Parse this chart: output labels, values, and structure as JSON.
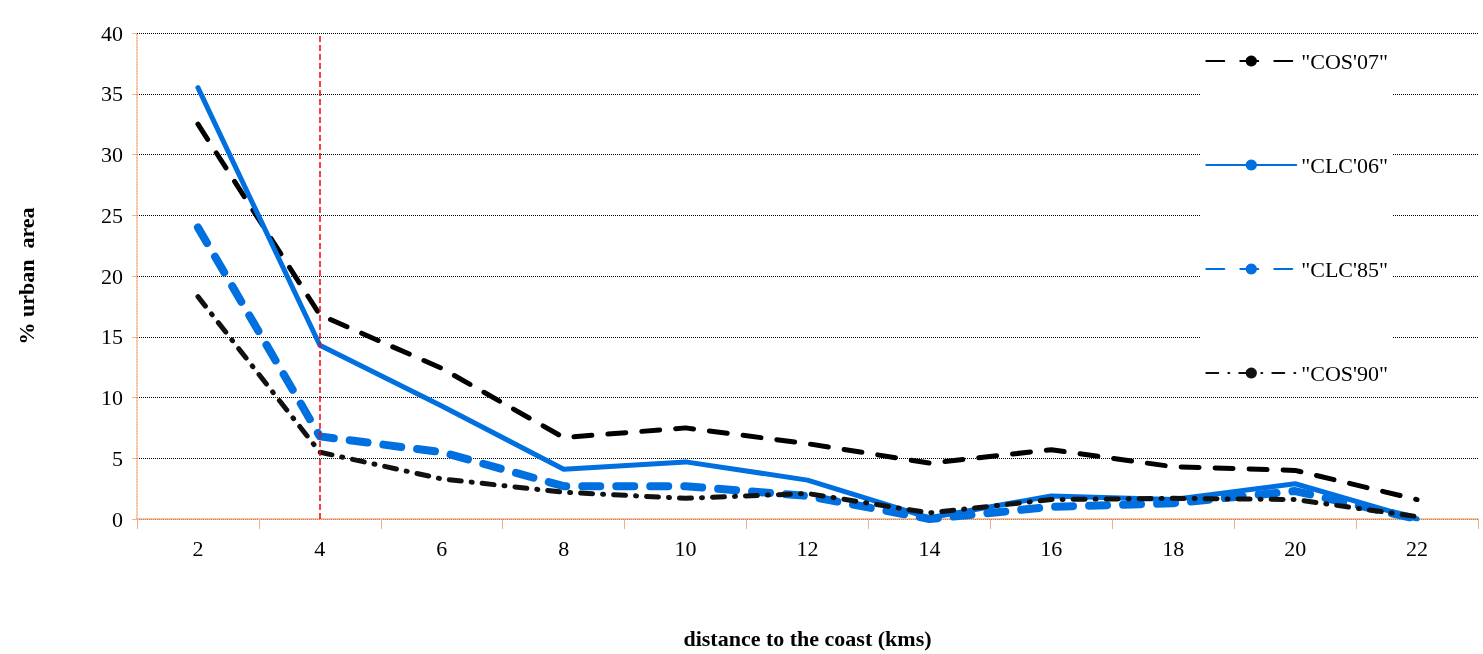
{
  "chart_data": {
    "type": "line",
    "xlabel": "distance to the coast (kms)",
    "ylabel": "% urban  area",
    "categories": [
      "2",
      "4",
      "6",
      "8",
      "10",
      "12",
      "14",
      "16",
      "18",
      "20",
      "22"
    ],
    "series": [
      {
        "name": "\"COS'07\"",
        "color": "#000000",
        "line_style": "dashed",
        "values": [
          32.5,
          16.8,
          12.4,
          6.7,
          7.5,
          6.2,
          4.6,
          5.7,
          4.3,
          4.0,
          1.6
        ]
      },
      {
        "name": "\"CLC'06\"",
        "color": "#0070e0",
        "line_style": "solid",
        "values": [
          35.5,
          14.3,
          9.3,
          4.1,
          4.7,
          3.2,
          0.1,
          1.9,
          1.6,
          2.9,
          0
        ]
      },
      {
        "name": "\"CLC'85\"",
        "color": "#0070e0",
        "line_style": "dashed",
        "values": [
          24,
          6.8,
          5.5,
          2.7,
          2.7,
          1.9,
          0,
          1.0,
          1.3,
          2.3,
          0
        ]
      },
      {
        "name": "\"COS'90\"",
        "color": "#111111",
        "line_style": "dashdot",
        "values": [
          18.3,
          5.5,
          3.3,
          2.2,
          1.7,
          2.1,
          0.5,
          1.6,
          1.7,
          1.6,
          0.2
        ]
      }
    ],
    "ylim": [
      0,
      40
    ],
    "yticks": [
      0,
      5,
      10,
      15,
      20,
      25,
      30,
      35,
      40
    ],
    "grid": "y",
    "legend": "right",
    "marker": "none",
    "ref_lines": [
      {
        "axis": "x",
        "value": "4",
        "color": "#ff0000",
        "line_style": "dashed"
      }
    ]
  }
}
